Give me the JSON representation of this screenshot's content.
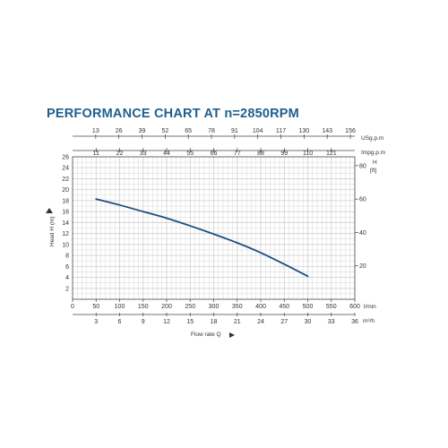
{
  "chart_data": {
    "type": "line",
    "title": "PERFORMANCE CHART AT n=2850RPM",
    "xlabel": "Flow rate Q",
    "ylabel": "Head H (m)",
    "right_ylabel": "H",
    "right_yunit": "[ft]",
    "grid": true,
    "x_lmin": {
      "unit": "l/min",
      "range": [
        0,
        600
      ],
      "ticks": [
        "0",
        "50",
        "100",
        "150",
        "200",
        "250",
        "300",
        "350",
        "400",
        "450",
        "500",
        "550",
        "600"
      ]
    },
    "x_m3h": {
      "unit": "m³/h",
      "range": [
        0,
        36
      ],
      "ticks": [
        "3",
        "6",
        "9",
        "12",
        "15",
        "18",
        "21",
        "24",
        "27",
        "30",
        "33",
        "36"
      ]
    },
    "x_usgpm": {
      "unit": "USg.p.m",
      "ticks": [
        "13",
        "26",
        "39",
        "52",
        "65",
        "78",
        "91",
        "104",
        "117",
        "130",
        "143",
        "156"
      ]
    },
    "x_impgpm": {
      "unit": "Impg.p.m",
      "ticks": [
        "11",
        "22",
        "33",
        "44",
        "55",
        "66",
        "77",
        "88",
        "99",
        "110",
        "121"
      ]
    },
    "y_m": {
      "range": [
        0,
        26
      ],
      "ticks": [
        "2",
        "4",
        "6",
        "8",
        "10",
        "12",
        "14",
        "16",
        "18",
        "20",
        "22",
        "24",
        "26"
      ]
    },
    "y_ft": {
      "ticks": [
        "20",
        "40",
        "60",
        "80"
      ]
    },
    "series": [
      {
        "color": "#1e4f7e",
        "x": [
          50,
          100,
          150,
          200,
          250,
          300,
          350,
          400,
          450,
          500
        ],
        "y": [
          18.3,
          17.2,
          16.0,
          14.8,
          13.4,
          11.9,
          10.3,
          8.5,
          6.4,
          4.2
        ]
      }
    ]
  },
  "colors": {
    "title": "#1f5f8f",
    "curve": "#1e4f7e",
    "grid": "#d3d3d3",
    "axis": "#444444"
  }
}
